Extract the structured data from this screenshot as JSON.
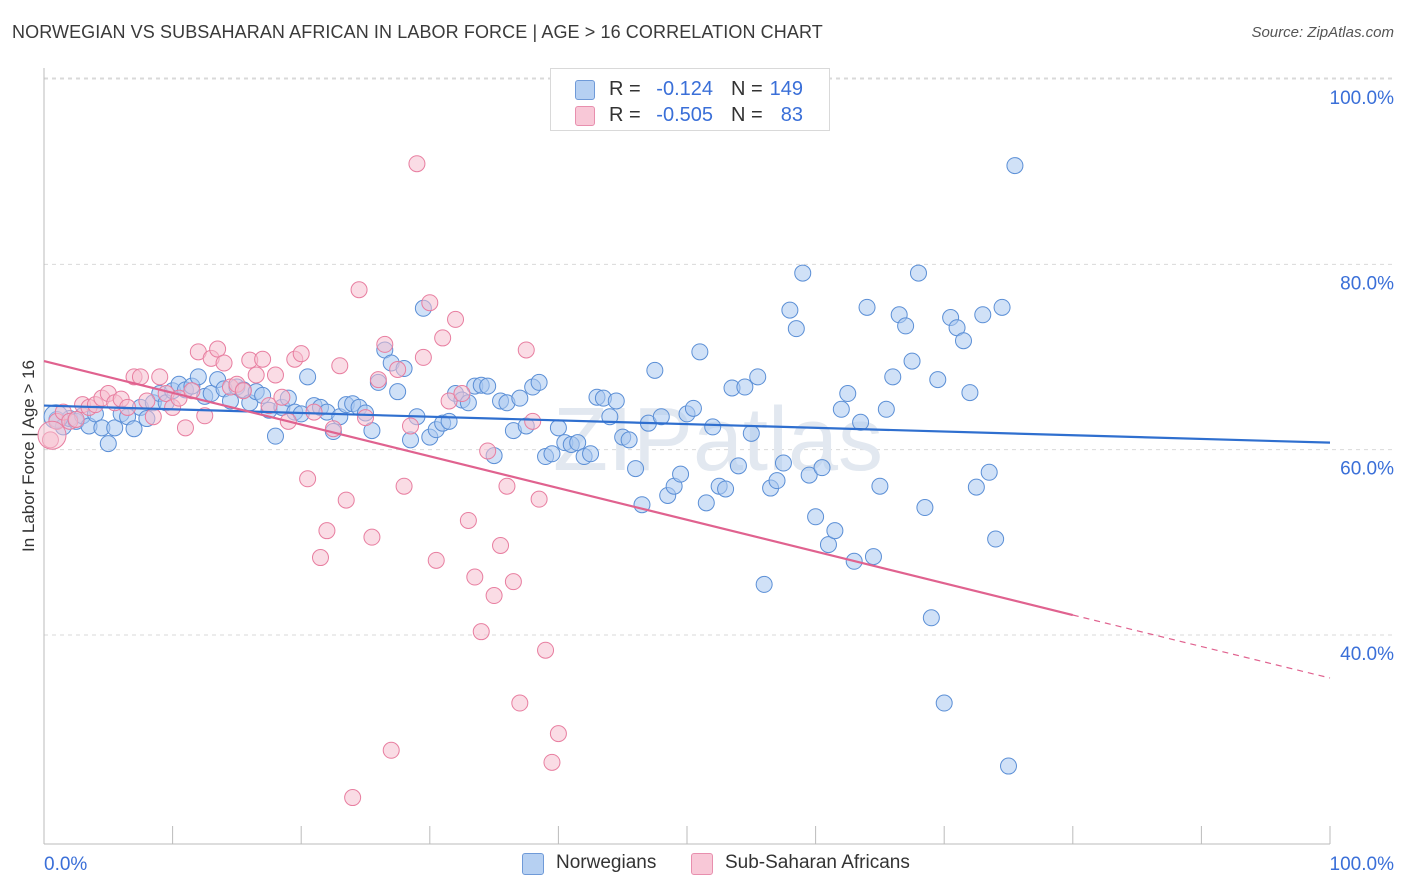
{
  "header": {
    "title": "NORWEGIAN VS SUBSAHARAN AFRICAN IN LABOR FORCE | AGE > 16 CORRELATION CHART",
    "source": "Source: ZipAtlas.com"
  },
  "watermark": "ZIPatlas",
  "colors": {
    "blue_fill": "#a9c8f0",
    "blue_stroke": "#5b8fd6",
    "blue_line": "#2f6fcf",
    "pink_fill": "#f6bfd0",
    "pink_stroke": "#e87ea0",
    "pink_line": "#e0628f",
    "tick_label": "#3a6fd8",
    "grid": "#d9d9d9"
  },
  "legend": {
    "rows": [
      {
        "r_label": "R =",
        "r_value": "-0.124",
        "n_label": "N =",
        "n_value": "149"
      },
      {
        "r_label": "R =",
        "r_value": "-0.505",
        "n_label": "N =",
        "n_value": "83"
      }
    ],
    "bottom": [
      "Norwegians",
      "Sub-Saharan Africans"
    ]
  },
  "chart_data": {
    "type": "scatter",
    "title": "NORWEGIAN VS SUBSAHARAN AFRICAN IN LABOR FORCE | AGE > 16 CORRELATION CHART",
    "xlabel": "",
    "ylabel": "In Labor Force | Age > 16",
    "xlim": [
      0,
      100
    ],
    "ylim": [
      22,
      104
    ],
    "x_tick_labels": [
      "0.0%",
      "100.0%"
    ],
    "y_ticks": [
      40,
      60,
      80,
      100
    ],
    "y_tick_labels": [
      "40.0%",
      "60.0%",
      "80.0%",
      "100.0%"
    ],
    "grid": "horizontal dashed",
    "legend_position": "top-center",
    "series": [
      {
        "name": "Norwegians",
        "r": -0.124,
        "n": 149,
        "trend": {
          "x": [
            0,
            100
          ],
          "y": [
            66.7,
            62.7
          ]
        },
        "points": [
          [
            1,
            65.2
          ],
          [
            1.5,
            64.4
          ],
          [
            2,
            65.3
          ],
          [
            2.5,
            65.0
          ],
          [
            3,
            65.6
          ],
          [
            3.5,
            64.5
          ],
          [
            4,
            65.8
          ],
          [
            4.5,
            64.3
          ],
          [
            5,
            62.6
          ],
          [
            5.5,
            64.3
          ],
          [
            6,
            65.8
          ],
          [
            6.5,
            65.5
          ],
          [
            7,
            64.2
          ],
          [
            7.5,
            66.5
          ],
          [
            8,
            65.3
          ],
          [
            8.5,
            67.0
          ],
          [
            9,
            68.0
          ],
          [
            9.5,
            67.0
          ],
          [
            10,
            68.3
          ],
          [
            10.5,
            69.0
          ],
          [
            11,
            68.4
          ],
          [
            11.5,
            68.8
          ],
          [
            12,
            69.8
          ],
          [
            12.5,
            67.7
          ],
          [
            13,
            68.0
          ],
          [
            13.5,
            69.5
          ],
          [
            14,
            68.5
          ],
          [
            14.5,
            67.2
          ],
          [
            15,
            68.7
          ],
          [
            15.5,
            68.4
          ],
          [
            16,
            67.0
          ],
          [
            16.5,
            68.2
          ],
          [
            17,
            67.8
          ],
          [
            17.5,
            66.2
          ],
          [
            18,
            63.4
          ],
          [
            18.5,
            66.5
          ],
          [
            19,
            67.5
          ],
          [
            19.5,
            66.0
          ],
          [
            20,
            65.8
          ],
          [
            20.5,
            69.8
          ],
          [
            21,
            66.7
          ],
          [
            21.5,
            66.5
          ],
          [
            22,
            66.0
          ],
          [
            22.5,
            63.9
          ],
          [
            23,
            65.5
          ],
          [
            23.5,
            66.8
          ],
          [
            24,
            66.9
          ],
          [
            24.5,
            66.5
          ],
          [
            25,
            65.9
          ],
          [
            25.5,
            64.0
          ],
          [
            26,
            69.2
          ],
          [
            26.5,
            72.7
          ],
          [
            27,
            71.3
          ],
          [
            27.5,
            68.2
          ],
          [
            28,
            70.7
          ],
          [
            28.5,
            63.0
          ],
          [
            29,
            65.5
          ],
          [
            29.5,
            77.2
          ],
          [
            30,
            63.3
          ],
          [
            30.5,
            64.1
          ],
          [
            31,
            64.8
          ],
          [
            31.5,
            65.0
          ],
          [
            32,
            68.0
          ],
          [
            32.5,
            67.3
          ],
          [
            33,
            67.0
          ],
          [
            33.5,
            68.8
          ],
          [
            34,
            68.9
          ],
          [
            34.5,
            68.8
          ],
          [
            35,
            61.3
          ],
          [
            35.5,
            67.2
          ],
          [
            36,
            67.0
          ],
          [
            36.5,
            64.0
          ],
          [
            37,
            67.5
          ],
          [
            37.5,
            64.5
          ],
          [
            38,
            68.7
          ],
          [
            38.5,
            69.2
          ],
          [
            39,
            61.2
          ],
          [
            39.5,
            61.5
          ],
          [
            40,
            64.3
          ],
          [
            40.5,
            62.7
          ],
          [
            41,
            62.5
          ],
          [
            41.5,
            62.7
          ],
          [
            42,
            61.2
          ],
          [
            42.5,
            61.5
          ],
          [
            43,
            67.6
          ],
          [
            43.5,
            67.5
          ],
          [
            44,
            65.5
          ],
          [
            44.5,
            67.2
          ],
          [
            45,
            63.3
          ],
          [
            45.5,
            63.0
          ],
          [
            46,
            59.9
          ],
          [
            46.5,
            56.0
          ],
          [
            47,
            64.8
          ],
          [
            47.5,
            70.5
          ],
          [
            48,
            65.5
          ],
          [
            48.5,
            57.0
          ],
          [
            49,
            58.0
          ],
          [
            49.5,
            59.3
          ],
          [
            50,
            65.8
          ],
          [
            50.5,
            66.4
          ],
          [
            51,
            72.5
          ],
          [
            51.5,
            56.2
          ],
          [
            52,
            64.4
          ],
          [
            52.5,
            58.0
          ],
          [
            53,
            57.7
          ],
          [
            53.5,
            68.6
          ],
          [
            54,
            60.2
          ],
          [
            54.5,
            68.7
          ],
          [
            55,
            63.7
          ],
          [
            55.5,
            69.8
          ],
          [
            56,
            47.4
          ],
          [
            56.5,
            57.8
          ],
          [
            57,
            58.6
          ],
          [
            57.5,
            60.5
          ],
          [
            58,
            77.0
          ],
          [
            58.5,
            75.0
          ],
          [
            59,
            81.0
          ],
          [
            59.5,
            59.2
          ],
          [
            60,
            54.7
          ],
          [
            60.5,
            60.0
          ],
          [
            61,
            51.7
          ],
          [
            61.5,
            53.2
          ],
          [
            62,
            66.3
          ],
          [
            62.5,
            68.0
          ],
          [
            63,
            49.9
          ],
          [
            63.5,
            64.9
          ],
          [
            64,
            77.3
          ],
          [
            64.5,
            50.4
          ],
          [
            65,
            58.0
          ],
          [
            65.5,
            66.3
          ],
          [
            66,
            69.8
          ],
          [
            66.5,
            76.5
          ],
          [
            67,
            75.3
          ],
          [
            67.5,
            71.5
          ],
          [
            68,
            81.0
          ],
          [
            68.5,
            55.7
          ],
          [
            69,
            43.8
          ],
          [
            69.5,
            69.5
          ],
          [
            70,
            34.6
          ],
          [
            70.5,
            76.2
          ],
          [
            71,
            75.1
          ],
          [
            71.5,
            73.7
          ],
          [
            72,
            68.1
          ],
          [
            72.5,
            57.9
          ],
          [
            73,
            76.5
          ],
          [
            73.5,
            59.5
          ],
          [
            74,
            52.3
          ],
          [
            74.5,
            77.3
          ],
          [
            75,
            27.8
          ],
          [
            75.5,
            92.6
          ]
        ]
      },
      {
        "name": "Sub-Saharan Africans",
        "r": -0.505,
        "n": 83,
        "trend": {
          "x": [
            0,
            80
          ],
          "y": [
            71.5,
            44.1
          ]
        },
        "trend_dashed": {
          "x": [
            80,
            100
          ],
          "y": [
            44.1,
            37.3
          ]
        },
        "points": [
          [
            0.5,
            63.0
          ],
          [
            1,
            65.0
          ],
          [
            1.5,
            66.0
          ],
          [
            2,
            65.0
          ],
          [
            2.5,
            65.2
          ],
          [
            3,
            66.8
          ],
          [
            3.5,
            66.5
          ],
          [
            4,
            66.8
          ],
          [
            4.5,
            67.5
          ],
          [
            5,
            68.0
          ],
          [
            5.5,
            67.0
          ],
          [
            6,
            67.4
          ],
          [
            6.5,
            66.5
          ],
          [
            7,
            69.8
          ],
          [
            7.5,
            69.8
          ],
          [
            8,
            67.2
          ],
          [
            8.5,
            65.5
          ],
          [
            9,
            69.8
          ],
          [
            9.5,
            68.0
          ],
          [
            10,
            66.5
          ],
          [
            10.5,
            67.5
          ],
          [
            11,
            64.3
          ],
          [
            11.5,
            68.3
          ],
          [
            12,
            72.5
          ],
          [
            12.5,
            65.6
          ],
          [
            13,
            71.8
          ],
          [
            13.5,
            72.8
          ],
          [
            14,
            71.3
          ],
          [
            14.5,
            68.7
          ],
          [
            15,
            69.0
          ],
          [
            15.5,
            68.3
          ],
          [
            16,
            71.6
          ],
          [
            16.5,
            70.0
          ],
          [
            17,
            71.7
          ],
          [
            17.5,
            66.7
          ],
          [
            18,
            70.0
          ],
          [
            18.5,
            67.6
          ],
          [
            19,
            65.0
          ],
          [
            19.5,
            71.7
          ],
          [
            20,
            72.3
          ],
          [
            20.5,
            58.8
          ],
          [
            21,
            66.0
          ],
          [
            21.5,
            50.3
          ],
          [
            22,
            53.2
          ],
          [
            22.5,
            64.2
          ],
          [
            23,
            71.0
          ],
          [
            23.5,
            56.5
          ],
          [
            24,
            24.4
          ],
          [
            24.5,
            79.2
          ],
          [
            25,
            65.4
          ],
          [
            25.5,
            52.5
          ],
          [
            26,
            69.5
          ],
          [
            26.5,
            73.3
          ],
          [
            27,
            29.5
          ],
          [
            27.5,
            70.6
          ],
          [
            28,
            58.0
          ],
          [
            28.5,
            64.5
          ],
          [
            29,
            92.8
          ],
          [
            29.5,
            71.9
          ],
          [
            30,
            77.8
          ],
          [
            30.5,
            50.0
          ],
          [
            31,
            74.0
          ],
          [
            31.5,
            67.2
          ],
          [
            32,
            76.0
          ],
          [
            32.5,
            68.0
          ],
          [
            33,
            54.3
          ],
          [
            33.5,
            48.2
          ],
          [
            34,
            42.3
          ],
          [
            34.5,
            61.8
          ],
          [
            35,
            46.2
          ],
          [
            35.5,
            51.6
          ],
          [
            36,
            58.0
          ],
          [
            36.5,
            47.7
          ],
          [
            37,
            34.6
          ],
          [
            37.5,
            72.7
          ],
          [
            38,
            65.0
          ],
          [
            38.5,
            56.6
          ],
          [
            39,
            40.3
          ],
          [
            39.5,
            28.2
          ],
          [
            40,
            31.3
          ]
        ]
      }
    ]
  }
}
